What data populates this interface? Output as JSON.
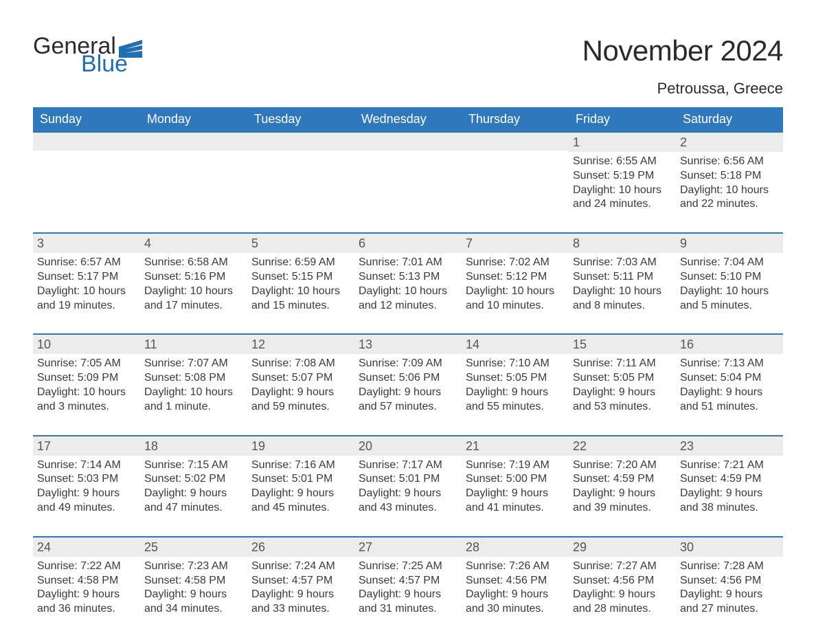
{
  "brand": {
    "text1": "General",
    "text2": "Blue"
  },
  "title": "November 2024",
  "subtitle": "Petroussa, Greece",
  "colors": {
    "header_bg": "#2f78bc",
    "header_text": "#ffffff",
    "band_bg": "#ececec",
    "band_text": "#555555",
    "body_text": "#3a3a3a",
    "rule": "#2f78bc",
    "logo_blue": "#1f6fb2"
  },
  "weekdays": [
    "Sunday",
    "Monday",
    "Tuesday",
    "Wednesday",
    "Thursday",
    "Friday",
    "Saturday"
  ],
  "weeks": [
    [
      {
        "empty": true
      },
      {
        "empty": true
      },
      {
        "empty": true
      },
      {
        "empty": true
      },
      {
        "empty": true
      },
      {
        "n": "1",
        "sunrise": "Sunrise: 6:55 AM",
        "sunset": "Sunset: 5:19 PM",
        "day1": "Daylight: 10 hours",
        "day2": "and 24 minutes."
      },
      {
        "n": "2",
        "sunrise": "Sunrise: 6:56 AM",
        "sunset": "Sunset: 5:18 PM",
        "day1": "Daylight: 10 hours",
        "day2": "and 22 minutes."
      }
    ],
    [
      {
        "n": "3",
        "sunrise": "Sunrise: 6:57 AM",
        "sunset": "Sunset: 5:17 PM",
        "day1": "Daylight: 10 hours",
        "day2": "and 19 minutes."
      },
      {
        "n": "4",
        "sunrise": "Sunrise: 6:58 AM",
        "sunset": "Sunset: 5:16 PM",
        "day1": "Daylight: 10 hours",
        "day2": "and 17 minutes."
      },
      {
        "n": "5",
        "sunrise": "Sunrise: 6:59 AM",
        "sunset": "Sunset: 5:15 PM",
        "day1": "Daylight: 10 hours",
        "day2": "and 15 minutes."
      },
      {
        "n": "6",
        "sunrise": "Sunrise: 7:01 AM",
        "sunset": "Sunset: 5:13 PM",
        "day1": "Daylight: 10 hours",
        "day2": "and 12 minutes."
      },
      {
        "n": "7",
        "sunrise": "Sunrise: 7:02 AM",
        "sunset": "Sunset: 5:12 PM",
        "day1": "Daylight: 10 hours",
        "day2": "and 10 minutes."
      },
      {
        "n": "8",
        "sunrise": "Sunrise: 7:03 AM",
        "sunset": "Sunset: 5:11 PM",
        "day1": "Daylight: 10 hours",
        "day2": "and 8 minutes."
      },
      {
        "n": "9",
        "sunrise": "Sunrise: 7:04 AM",
        "sunset": "Sunset: 5:10 PM",
        "day1": "Daylight: 10 hours",
        "day2": "and 5 minutes."
      }
    ],
    [
      {
        "n": "10",
        "sunrise": "Sunrise: 7:05 AM",
        "sunset": "Sunset: 5:09 PM",
        "day1": "Daylight: 10 hours",
        "day2": "and 3 minutes."
      },
      {
        "n": "11",
        "sunrise": "Sunrise: 7:07 AM",
        "sunset": "Sunset: 5:08 PM",
        "day1": "Daylight: 10 hours",
        "day2": "and 1 minute."
      },
      {
        "n": "12",
        "sunrise": "Sunrise: 7:08 AM",
        "sunset": "Sunset: 5:07 PM",
        "day1": "Daylight: 9 hours",
        "day2": "and 59 minutes."
      },
      {
        "n": "13",
        "sunrise": "Sunrise: 7:09 AM",
        "sunset": "Sunset: 5:06 PM",
        "day1": "Daylight: 9 hours",
        "day2": "and 57 minutes."
      },
      {
        "n": "14",
        "sunrise": "Sunrise: 7:10 AM",
        "sunset": "Sunset: 5:05 PM",
        "day1": "Daylight: 9 hours",
        "day2": "and 55 minutes."
      },
      {
        "n": "15",
        "sunrise": "Sunrise: 7:11 AM",
        "sunset": "Sunset: 5:05 PM",
        "day1": "Daylight: 9 hours",
        "day2": "and 53 minutes."
      },
      {
        "n": "16",
        "sunrise": "Sunrise: 7:13 AM",
        "sunset": "Sunset: 5:04 PM",
        "day1": "Daylight: 9 hours",
        "day2": "and 51 minutes."
      }
    ],
    [
      {
        "n": "17",
        "sunrise": "Sunrise: 7:14 AM",
        "sunset": "Sunset: 5:03 PM",
        "day1": "Daylight: 9 hours",
        "day2": "and 49 minutes."
      },
      {
        "n": "18",
        "sunrise": "Sunrise: 7:15 AM",
        "sunset": "Sunset: 5:02 PM",
        "day1": "Daylight: 9 hours",
        "day2": "and 47 minutes."
      },
      {
        "n": "19",
        "sunrise": "Sunrise: 7:16 AM",
        "sunset": "Sunset: 5:01 PM",
        "day1": "Daylight: 9 hours",
        "day2": "and 45 minutes."
      },
      {
        "n": "20",
        "sunrise": "Sunrise: 7:17 AM",
        "sunset": "Sunset: 5:01 PM",
        "day1": "Daylight: 9 hours",
        "day2": "and 43 minutes."
      },
      {
        "n": "21",
        "sunrise": "Sunrise: 7:19 AM",
        "sunset": "Sunset: 5:00 PM",
        "day1": "Daylight: 9 hours",
        "day2": "and 41 minutes."
      },
      {
        "n": "22",
        "sunrise": "Sunrise: 7:20 AM",
        "sunset": "Sunset: 4:59 PM",
        "day1": "Daylight: 9 hours",
        "day2": "and 39 minutes."
      },
      {
        "n": "23",
        "sunrise": "Sunrise: 7:21 AM",
        "sunset": "Sunset: 4:59 PM",
        "day1": "Daylight: 9 hours",
        "day2": "and 38 minutes."
      }
    ],
    [
      {
        "n": "24",
        "sunrise": "Sunrise: 7:22 AM",
        "sunset": "Sunset: 4:58 PM",
        "day1": "Daylight: 9 hours",
        "day2": "and 36 minutes."
      },
      {
        "n": "25",
        "sunrise": "Sunrise: 7:23 AM",
        "sunset": "Sunset: 4:58 PM",
        "day1": "Daylight: 9 hours",
        "day2": "and 34 minutes."
      },
      {
        "n": "26",
        "sunrise": "Sunrise: 7:24 AM",
        "sunset": "Sunset: 4:57 PM",
        "day1": "Daylight: 9 hours",
        "day2": "and 33 minutes."
      },
      {
        "n": "27",
        "sunrise": "Sunrise: 7:25 AM",
        "sunset": "Sunset: 4:57 PM",
        "day1": "Daylight: 9 hours",
        "day2": "and 31 minutes."
      },
      {
        "n": "28",
        "sunrise": "Sunrise: 7:26 AM",
        "sunset": "Sunset: 4:56 PM",
        "day1": "Daylight: 9 hours",
        "day2": "and 30 minutes."
      },
      {
        "n": "29",
        "sunrise": "Sunrise: 7:27 AM",
        "sunset": "Sunset: 4:56 PM",
        "day1": "Daylight: 9 hours",
        "day2": "and 28 minutes."
      },
      {
        "n": "30",
        "sunrise": "Sunrise: 7:28 AM",
        "sunset": "Sunset: 4:56 PM",
        "day1": "Daylight: 9 hours",
        "day2": "and 27 minutes."
      }
    ]
  ]
}
